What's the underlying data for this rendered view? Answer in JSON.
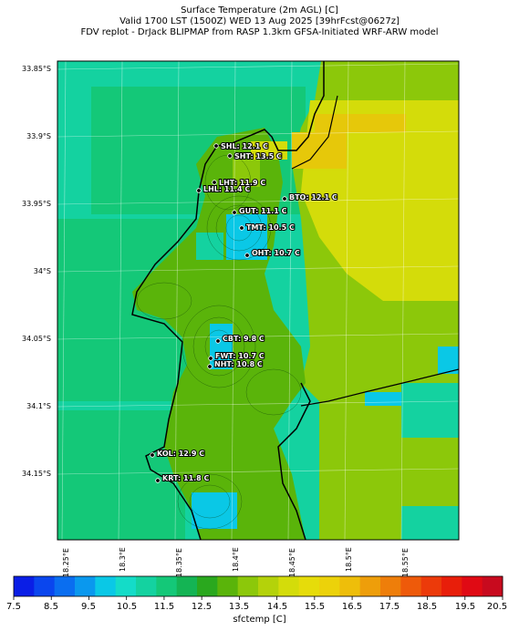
{
  "title": {
    "line1": "Surface Temperature (2m AGL) [C]",
    "line2": "Valid 1700 LST (1500Z) WED 13 Aug 2025 [39hrFcst@0627z]",
    "line3": "FDV replot - DrJack BLIPMAP from RASP 1.3km GFSA-Initiated WRF-ARW model"
  },
  "axes": {
    "lat_ticks": [
      "33.85°S",
      "33.9°S",
      "33.95°S",
      "34°S",
      "34.05°S",
      "34.1°S",
      "34.15°S"
    ],
    "lon_ticks": [
      "18.25°E",
      "18.3°E",
      "18.35°E",
      "18.4°E",
      "18.45°E",
      "18.5°E",
      "18.55°E"
    ]
  },
  "colorbar": {
    "label": "sfctemp [C]",
    "ticks": [
      "7.5",
      "8.5",
      "9.5",
      "10.5",
      "11.5",
      "12.5",
      "13.5",
      "14.5",
      "15.5",
      "16.5",
      "17.5",
      "18.5",
      "19.5",
      "20.5"
    ],
    "colors": [
      "#0a1ee6",
      "#0a46ee",
      "#0a6ef0",
      "#0a98ee",
      "#0ac8e6",
      "#14dcc8",
      "#14d2a0",
      "#14c878",
      "#14b454",
      "#2aa81e",
      "#5ab40a",
      "#8cc80a",
      "#b4d20a",
      "#d4dc0a",
      "#e6dc0a",
      "#ecd20a",
      "#eebe0a",
      "#ee9e0a",
      "#ee7e0a",
      "#ee5a0a",
      "#ec3a0a",
      "#e81e0a",
      "#e00a14",
      "#c80a1e"
    ]
  },
  "stations": [
    {
      "label": "SHL: 12.1 C"
    },
    {
      "label": "SHT: 13.5 C"
    },
    {
      "label": "LHT: 11.9 C"
    },
    {
      "label": "LHL: 11.4 C"
    },
    {
      "label": "BTO: 12.1 C"
    },
    {
      "label": "GUT: 11.1 C"
    },
    {
      "label": "TMT: 10.5 C"
    },
    {
      "label": "OHT: 10.7 C"
    },
    {
      "label": "CBT: 9.8 C"
    },
    {
      "label": "FWT: 10.7 C"
    },
    {
      "label": "NHT: 10.8 C"
    },
    {
      "label": "KOL: 12.9 C"
    },
    {
      "label": "KRT: 11.8 C"
    }
  ]
}
